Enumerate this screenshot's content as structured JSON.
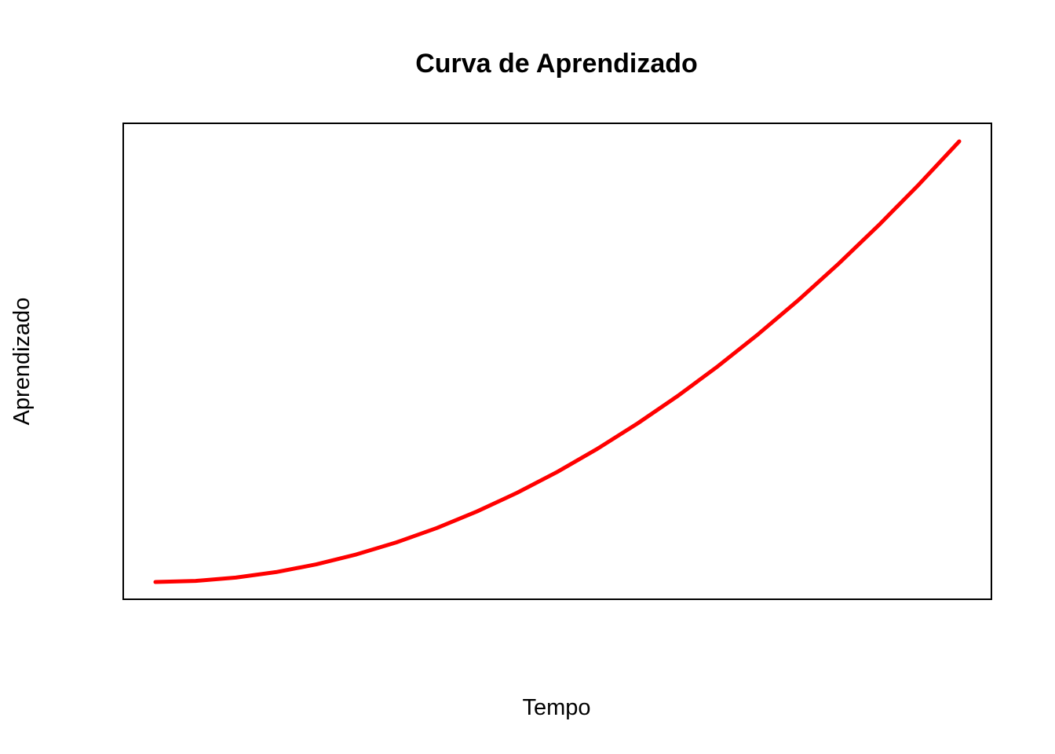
{
  "chart_data": {
    "type": "line",
    "title": "Curva de Aprendizado",
    "xlabel": "Tempo",
    "ylabel": "Aprendizado",
    "axes_shown": false,
    "grid": false,
    "legend": "none",
    "xlim": [
      0,
      1
    ],
    "ylim": [
      0,
      1
    ],
    "series": [
      {
        "color": "#ff0000",
        "x": [
          0,
          0.05,
          0.1,
          0.15,
          0.2,
          0.25,
          0.3,
          0.35,
          0.4,
          0.45,
          0.5,
          0.55,
          0.6,
          0.65,
          0.7,
          0.75,
          0.8,
          0.85,
          0.9,
          0.95,
          1
        ],
        "y": [
          0,
          0.0025,
          0.01,
          0.0225,
          0.04,
          0.0625,
          0.09,
          0.1225,
          0.16,
          0.2025,
          0.25,
          0.3025,
          0.36,
          0.4225,
          0.49,
          0.5625,
          0.64,
          0.7225,
          0.81,
          0.9025,
          1
        ]
      }
    ]
  }
}
